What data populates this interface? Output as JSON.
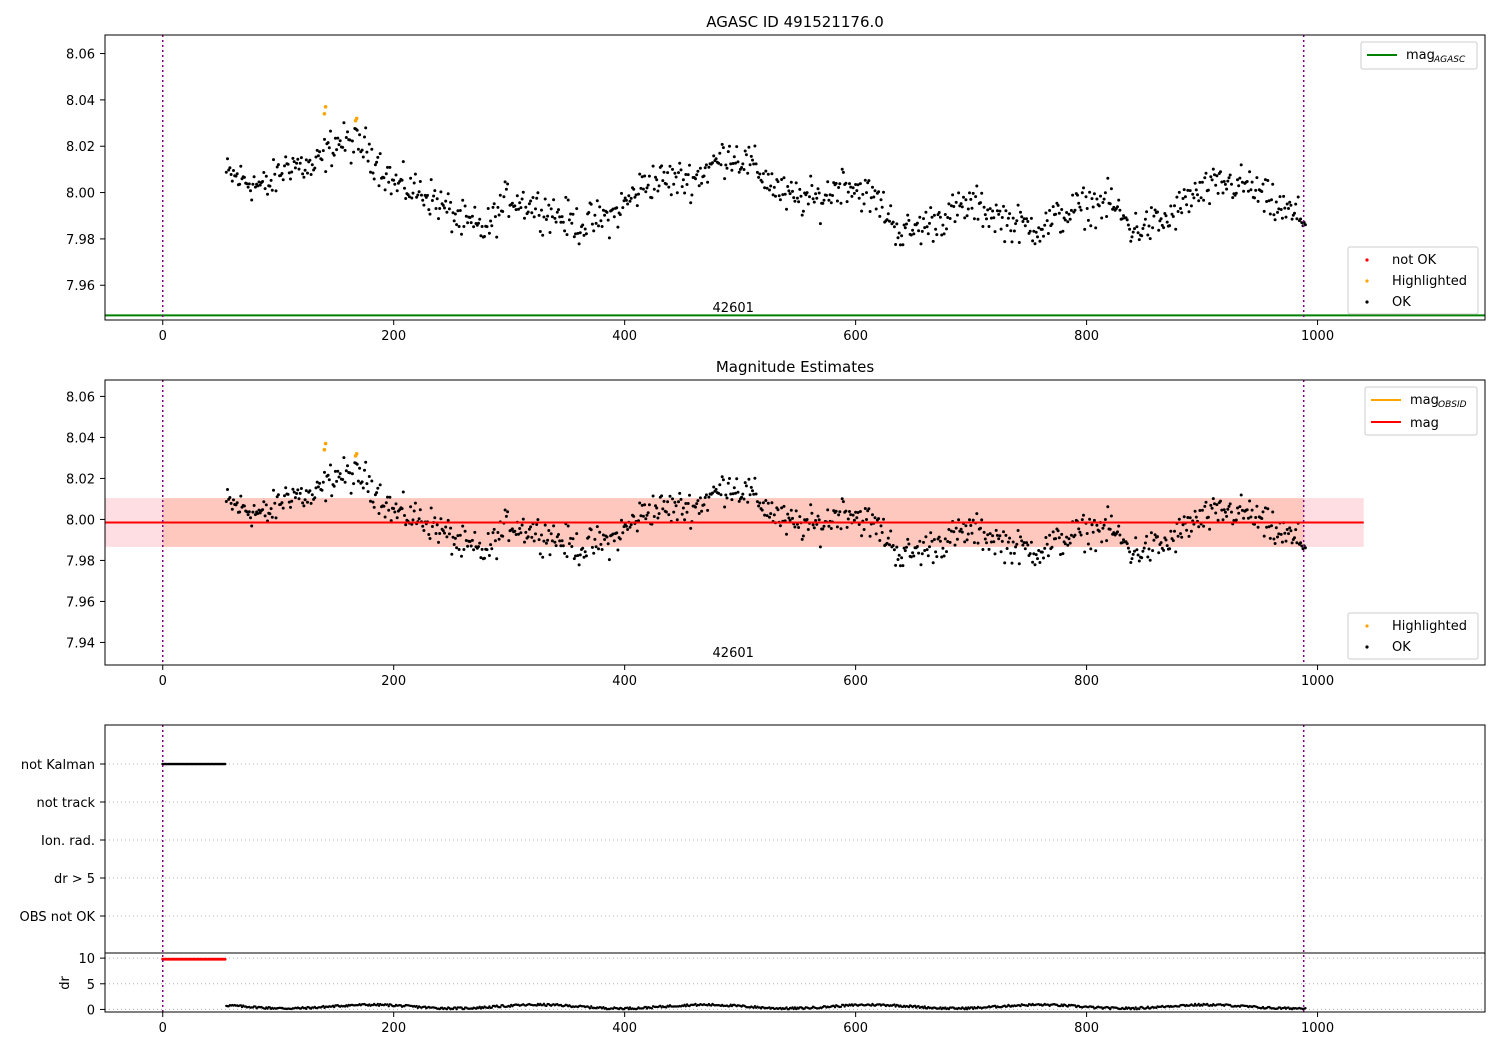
{
  "figure": {
    "panel1": {
      "title": "AGASC ID 491521176.0",
      "xlim": [
        -50,
        1145
      ],
      "ylim": [
        7.945,
        8.068
      ],
      "xticks": [
        0,
        200,
        400,
        600,
        800,
        1000
      ],
      "yticks": [
        "8.06",
        "8.04",
        "8.02",
        "8.00",
        "7.98",
        "7.96"
      ],
      "obsid_label": "42601",
      "mag_agasc": 7.947,
      "legend_top": [
        {
          "label": "mag",
          "sub": "AGASC",
          "color": "#008000"
        }
      ],
      "legend_bottom": [
        {
          "label": "not OK",
          "color": "#ff0000"
        },
        {
          "label": "Highlighted",
          "color": "#ffa500"
        },
        {
          "label": "OK",
          "color": "#000000"
        }
      ]
    },
    "panel2": {
      "title": "Magnitude Estimates",
      "xlim": [
        -50,
        1145
      ],
      "ylim": [
        7.929,
        8.068
      ],
      "xticks": [
        0,
        200,
        400,
        600,
        800,
        1000
      ],
      "yticks": [
        "8.06",
        "8.04",
        "8.02",
        "8.00",
        "7.98",
        "7.96",
        "7.94"
      ],
      "obsid_label": "42601",
      "mag": 7.9985,
      "mag_band": [
        7.9866,
        8.0104
      ],
      "band_x_end": 1040,
      "legend_top": [
        {
          "label": "mag",
          "sub": "OBSID",
          "color": "#ffa500"
        },
        {
          "label": "mag",
          "sub": "",
          "color": "#ff0000"
        }
      ],
      "legend_bottom": [
        {
          "label": "Highlighted",
          "color": "#ffa500"
        },
        {
          "label": "OK",
          "color": "#000000"
        }
      ]
    },
    "panel3": {
      "flags": [
        "not Kalman",
        "not track",
        "Ion. rad.",
        "dr > 5",
        "OBS not OK"
      ],
      "dr_ylabel": "dr",
      "dr_yticks": [
        "10",
        "5",
        "0"
      ],
      "xticks": [
        0,
        200,
        400,
        600,
        800,
        1000
      ]
    },
    "colors": {
      "ok": "#000000",
      "highlighted": "#ffa500",
      "not_ok": "#ff0000",
      "agasc": "#008000",
      "obs_line": "#800080",
      "band": "#ffa07a"
    }
  },
  "chart_data": [
    {
      "type": "scatter",
      "title": "AGASC ID 491521176.0",
      "xlabel": "",
      "ylabel": "",
      "xlim": [
        -50,
        1145
      ],
      "ylim": [
        7.945,
        8.068
      ],
      "series": [
        {
          "name": "OK",
          "points_approx": "about 900 samples from x=55 to x=990 with mag between 7.97 and 8.025"
        },
        {
          "name": "Highlighted",
          "x": [
            140,
            141,
            167,
            168
          ],
          "y": [
            8.034,
            8.037,
            8.031,
            8.032
          ]
        },
        {
          "name": "mag_AGASC",
          "y": 7.947
        }
      ],
      "vertical_lines_x": [
        0,
        988
      ],
      "annotations": [
        "42601"
      ]
    },
    {
      "type": "scatter",
      "title": "Magnitude Estimates",
      "xlim": [
        -50,
        1145
      ],
      "ylim": [
        7.929,
        8.068
      ],
      "series": [
        {
          "name": "OK"
        },
        {
          "name": "Highlighted",
          "x": [
            140,
            141,
            167,
            168
          ],
          "y": [
            8.034,
            8.037,
            8.031,
            8.032
          ]
        },
        {
          "name": "mag",
          "y": 7.9985
        },
        {
          "name": "mag_OBSID",
          "y": 7.9985
        }
      ],
      "annotations": [
        "42601"
      ]
    },
    {
      "type": "scatter",
      "categories": [
        "not Kalman",
        "not track",
        "Ion. rad.",
        "dr > 5",
        "OBS not OK"
      ],
      "not_kalman_x_range": [
        0,
        55
      ],
      "dr": {
        "ylim": [
          -0.5,
          11
        ],
        "high_values_x_range": [
          0,
          55
        ],
        "high_value": 9.8,
        "typical_range": [
          0.1,
          1.2
        ]
      }
    }
  ]
}
